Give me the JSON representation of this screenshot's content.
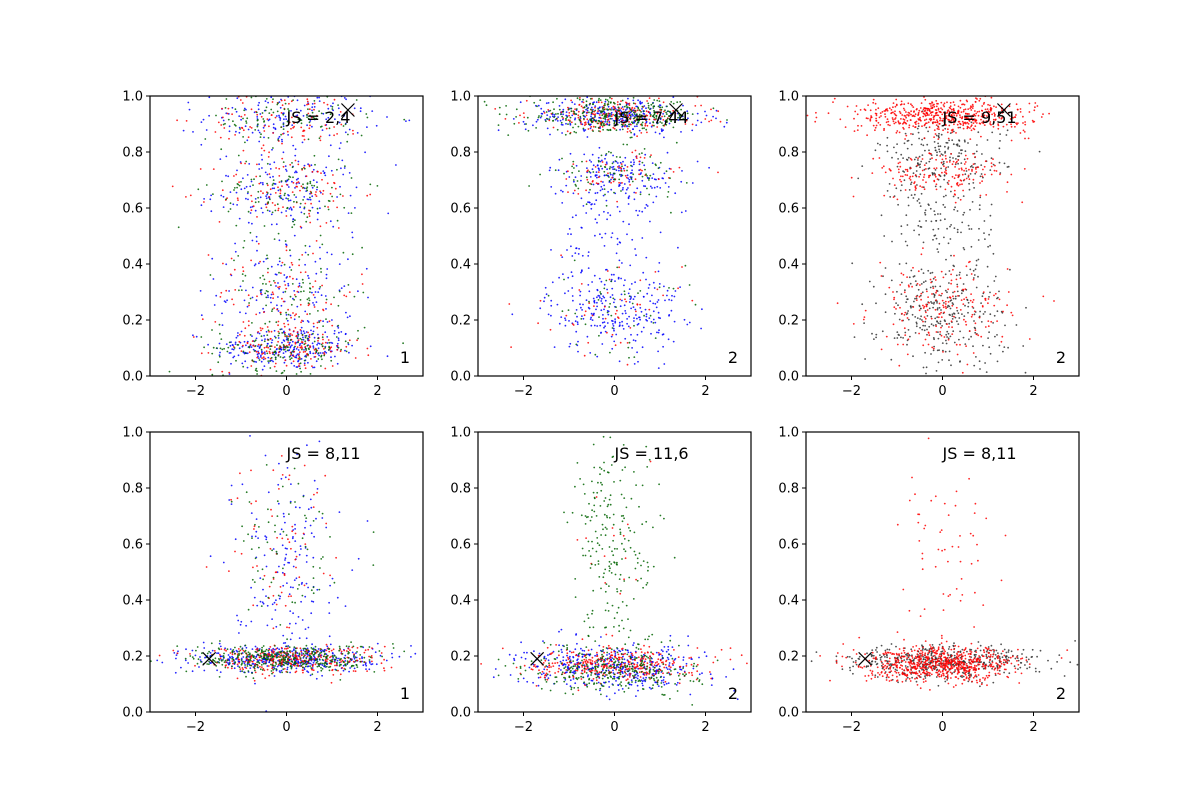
{
  "chart_data": [
    {
      "type": "scatter",
      "xlim": [
        -3,
        3
      ],
      "ylim": [
        0,
        1
      ],
      "xticks": [
        "−2",
        "0",
        "2"
      ],
      "yticks": [
        "0.0",
        "0.2",
        "0.4",
        "0.6",
        "0.8",
        "1.0"
      ],
      "annotation": "JS = 2,4",
      "corner_label": "1",
      "marker": {
        "x": 1.35,
        "y": 0.95
      },
      "series": [
        {
          "color": "#0000ff",
          "clusters": [
            {
              "y": 0.1,
              "ysd": 0.04,
              "xsd": 0.8,
              "n": 240
            },
            {
              "y": 0.3,
              "ysd": 0.1,
              "xsd": 0.75,
              "n": 140
            },
            {
              "y": 0.66,
              "ysd": 0.07,
              "xsd": 0.8,
              "n": 170
            },
            {
              "y": 0.92,
              "ysd": 0.05,
              "xsd": 0.9,
              "n": 150
            }
          ]
        },
        {
          "color": "#ff0000",
          "clusters": [
            {
              "y": 0.1,
              "ysd": 0.04,
              "xsd": 0.8,
              "n": 150
            },
            {
              "y": 0.3,
              "ysd": 0.1,
              "xsd": 0.75,
              "n": 100
            },
            {
              "y": 0.66,
              "ysd": 0.07,
              "xsd": 0.8,
              "n": 110
            },
            {
              "y": 0.92,
              "ysd": 0.05,
              "xsd": 0.9,
              "n": 100
            }
          ]
        },
        {
          "color": "#006400",
          "clusters": [
            {
              "y": 0.1,
              "ysd": 0.04,
              "xsd": 0.8,
              "n": 150
            },
            {
              "y": 0.3,
              "ysd": 0.1,
              "xsd": 0.75,
              "n": 100
            },
            {
              "y": 0.66,
              "ysd": 0.07,
              "xsd": 0.8,
              "n": 110
            },
            {
              "y": 0.92,
              "ysd": 0.05,
              "xsd": 0.9,
              "n": 100
            }
          ]
        }
      ]
    },
    {
      "type": "scatter",
      "xlim": [
        -3,
        3
      ],
      "ylim": [
        0,
        1
      ],
      "xticks": [
        "−2",
        "0",
        "2"
      ],
      "yticks": [
        "0.0",
        "0.2",
        "0.4",
        "0.6",
        "0.8",
        "1.0"
      ],
      "annotation": "JS = 7,44",
      "corner_label": "2",
      "marker": {
        "x": 1.35,
        "y": 0.95
      },
      "series": [
        {
          "color": "#0000ff",
          "clusters": [
            {
              "y": 0.24,
              "ysd": 0.08,
              "xsd": 0.75,
              "n": 260
            },
            {
              "y": 0.55,
              "ysd": 0.12,
              "xsd": 0.6,
              "n": 100
            },
            {
              "y": 0.72,
              "ysd": 0.04,
              "xsd": 0.75,
              "n": 150
            },
            {
              "y": 0.93,
              "ysd": 0.03,
              "xsd": 0.95,
              "n": 300
            }
          ]
        },
        {
          "color": "#ff0000",
          "clusters": [
            {
              "y": 0.24,
              "ysd": 0.08,
              "xsd": 0.75,
              "n": 50
            },
            {
              "y": 0.72,
              "ysd": 0.04,
              "xsd": 0.75,
              "n": 60
            },
            {
              "y": 0.93,
              "ysd": 0.03,
              "xsd": 0.95,
              "n": 220
            }
          ]
        },
        {
          "color": "#006400",
          "clusters": [
            {
              "y": 0.24,
              "ysd": 0.08,
              "xsd": 0.75,
              "n": 50
            },
            {
              "y": 0.72,
              "ysd": 0.04,
              "xsd": 0.75,
              "n": 90
            },
            {
              "y": 0.93,
              "ysd": 0.03,
              "xsd": 0.95,
              "n": 330
            }
          ]
        }
      ]
    },
    {
      "type": "scatter",
      "xlim": [
        -3,
        3
      ],
      "ylim": [
        0,
        1
      ],
      "xticks": [
        "−2",
        "0",
        "2"
      ],
      "yticks": [
        "0.0",
        "0.2",
        "0.4",
        "0.6",
        "0.8",
        "1.0"
      ],
      "annotation": "JS = 9,51",
      "corner_label": "2",
      "marker": {
        "x": 1.35,
        "y": 0.95
      },
      "series": [
        {
          "color": "#333333",
          "clusters": [
            {
              "y": 0.22,
              "ysd": 0.1,
              "xsd": 0.7,
              "n": 320
            },
            {
              "y": 0.55,
              "ysd": 0.1,
              "xsd": 0.55,
              "n": 120
            },
            {
              "y": 0.78,
              "ysd": 0.06,
              "xsd": 0.7,
              "n": 200
            }
          ]
        },
        {
          "color": "#ff0000",
          "clusters": [
            {
              "y": 0.24,
              "ysd": 0.08,
              "xsd": 0.75,
              "n": 200
            },
            {
              "y": 0.72,
              "ysd": 0.04,
              "xsd": 0.75,
              "n": 170
            },
            {
              "y": 0.93,
              "ysd": 0.03,
              "xsd": 0.95,
              "n": 560
            }
          ]
        }
      ]
    },
    {
      "type": "scatter",
      "xlim": [
        -3,
        3
      ],
      "ylim": [
        0,
        1
      ],
      "xticks": [
        "−2",
        "0",
        "2"
      ],
      "yticks": [
        "0.0",
        "0.2",
        "0.4",
        "0.6",
        "0.8",
        "1.0"
      ],
      "annotation": "JS = 8,11",
      "corner_label": "1",
      "marker": {
        "x": -1.7,
        "y": 0.19
      },
      "series": [
        {
          "color": "#0000ff",
          "clusters": [
            {
              "y": 0.19,
              "ysd": 0.025,
              "xsd": 1.0,
              "n": 420
            },
            {
              "y": 0.55,
              "ysd": 0.18,
              "xsd": 0.6,
              "n": 160
            }
          ]
        },
        {
          "color": "#ff0000",
          "clusters": [
            {
              "y": 0.19,
              "ysd": 0.025,
              "xsd": 1.0,
              "n": 300
            },
            {
              "y": 0.55,
              "ysd": 0.18,
              "xsd": 0.6,
              "n": 70
            }
          ]
        },
        {
          "color": "#006400",
          "clusters": [
            {
              "y": 0.19,
              "ysd": 0.025,
              "xsd": 1.0,
              "n": 400
            },
            {
              "y": 0.55,
              "ysd": 0.18,
              "xsd": 0.6,
              "n": 80
            }
          ]
        }
      ]
    },
    {
      "type": "scatter",
      "xlim": [
        -3,
        3
      ],
      "ylim": [
        0,
        1
      ],
      "xticks": [
        "−2",
        "0",
        "2"
      ],
      "yticks": [
        "0.0",
        "0.2",
        "0.4",
        "0.6",
        "0.8",
        "1.0"
      ],
      "annotation": "JS = 11,6",
      "corner_label": "2",
      "marker": {
        "x": -1.7,
        "y": 0.19
      },
      "series": [
        {
          "color": "#0000ff",
          "clusters": [
            {
              "y": 0.16,
              "ysd": 0.04,
              "xsd": 1.0,
              "n": 420
            }
          ]
        },
        {
          "color": "#ff0000",
          "clusters": [
            {
              "y": 0.17,
              "ysd": 0.03,
              "xsd": 0.9,
              "n": 350
            },
            {
              "y": 0.6,
              "ysd": 0.2,
              "xsd": 0.45,
              "n": 20
            }
          ]
        },
        {
          "color": "#006400",
          "clusters": [
            {
              "y": 0.15,
              "ysd": 0.04,
              "xsd": 0.9,
              "n": 300
            },
            {
              "y": 0.6,
              "ysd": 0.22,
              "xsd": 0.5,
              "n": 230
            }
          ]
        }
      ]
    },
    {
      "type": "scatter",
      "xlim": [
        -3,
        3
      ],
      "ylim": [
        0,
        1
      ],
      "xticks": [
        "−2",
        "0",
        "2"
      ],
      "yticks": [
        "0.0",
        "0.2",
        "0.4",
        "0.6",
        "0.8",
        "1.0"
      ],
      "annotation": "JS = 8,11",
      "corner_label": "2",
      "marker": {
        "x": -1.7,
        "y": 0.19
      },
      "series": [
        {
          "color": "#333333",
          "clusters": [
            {
              "y": 0.18,
              "ysd": 0.03,
              "xsd": 1.05,
              "n": 500
            }
          ]
        },
        {
          "color": "#ff0000",
          "clusters": [
            {
              "y": 0.17,
              "ysd": 0.03,
              "xsd": 0.85,
              "n": 700
            },
            {
              "y": 0.55,
              "ysd": 0.18,
              "xsd": 0.5,
              "n": 60
            }
          ]
        }
      ]
    }
  ]
}
